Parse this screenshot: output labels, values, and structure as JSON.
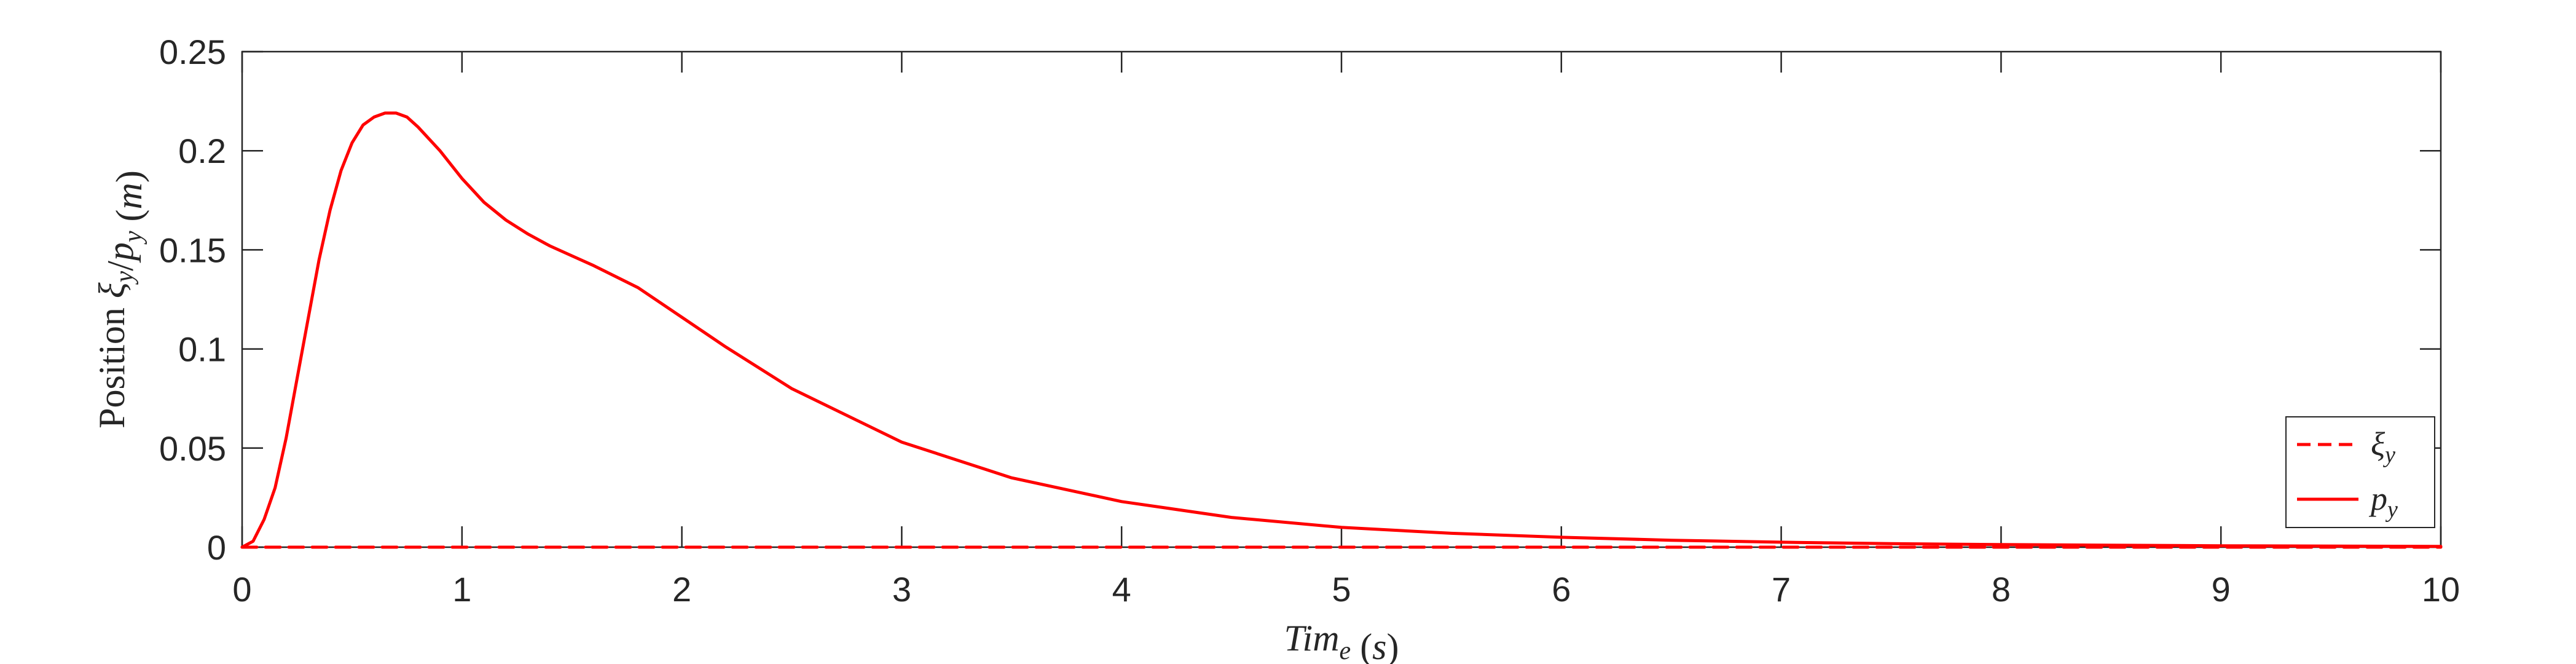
{
  "chart_data": {
    "type": "line",
    "xlabel": "Time (s)",
    "ylabel": "Position ξy/py (m)",
    "xlim": [
      0,
      10
    ],
    "ylim": [
      0,
      0.25
    ],
    "xticks": [
      "0",
      "1",
      "2",
      "3",
      "4",
      "5",
      "6",
      "7",
      "8",
      "9",
      "10"
    ],
    "yticks": [
      "0",
      "0.05",
      "0.1",
      "0.15",
      "0.2",
      "0.25"
    ],
    "grid": false,
    "legend_position": "bottom-right",
    "series": [
      {
        "name": "ξy",
        "style": "dashed",
        "color": "#ff0000",
        "x": [
          0,
          1,
          2,
          3,
          4,
          5,
          6,
          7,
          8,
          9,
          10
        ],
        "y": [
          0,
          0,
          0,
          0,
          0,
          0,
          0,
          0,
          0,
          0,
          0
        ]
      },
      {
        "name": "py",
        "style": "solid",
        "color": "#ff0000",
        "x": [
          0,
          0.05,
          0.1,
          0.15,
          0.2,
          0.25,
          0.3,
          0.35,
          0.4,
          0.45,
          0.5,
          0.55,
          0.6,
          0.65,
          0.7,
          0.75,
          0.8,
          0.9,
          1.0,
          1.1,
          1.2,
          1.3,
          1.4,
          1.5,
          1.6,
          1.8,
          2.0,
          2.2,
          2.5,
          3.0,
          3.5,
          4.0,
          4.5,
          5.0,
          5.5,
          6.0,
          6.5,
          7.0,
          7.5,
          8.0,
          9.0,
          10.0
        ],
        "y": [
          0,
          0.003,
          0.014,
          0.03,
          0.055,
          0.085,
          0.115,
          0.145,
          0.17,
          0.19,
          0.204,
          0.213,
          0.217,
          0.219,
          0.219,
          0.217,
          0.212,
          0.2,
          0.186,
          0.174,
          0.165,
          0.158,
          0.152,
          0.147,
          0.142,
          0.131,
          0.116,
          0.101,
          0.08,
          0.053,
          0.035,
          0.023,
          0.015,
          0.01,
          0.007,
          0.005,
          0.0035,
          0.0025,
          0.0018,
          0.0013,
          0.0007,
          0.0004
        ]
      }
    ]
  }
}
